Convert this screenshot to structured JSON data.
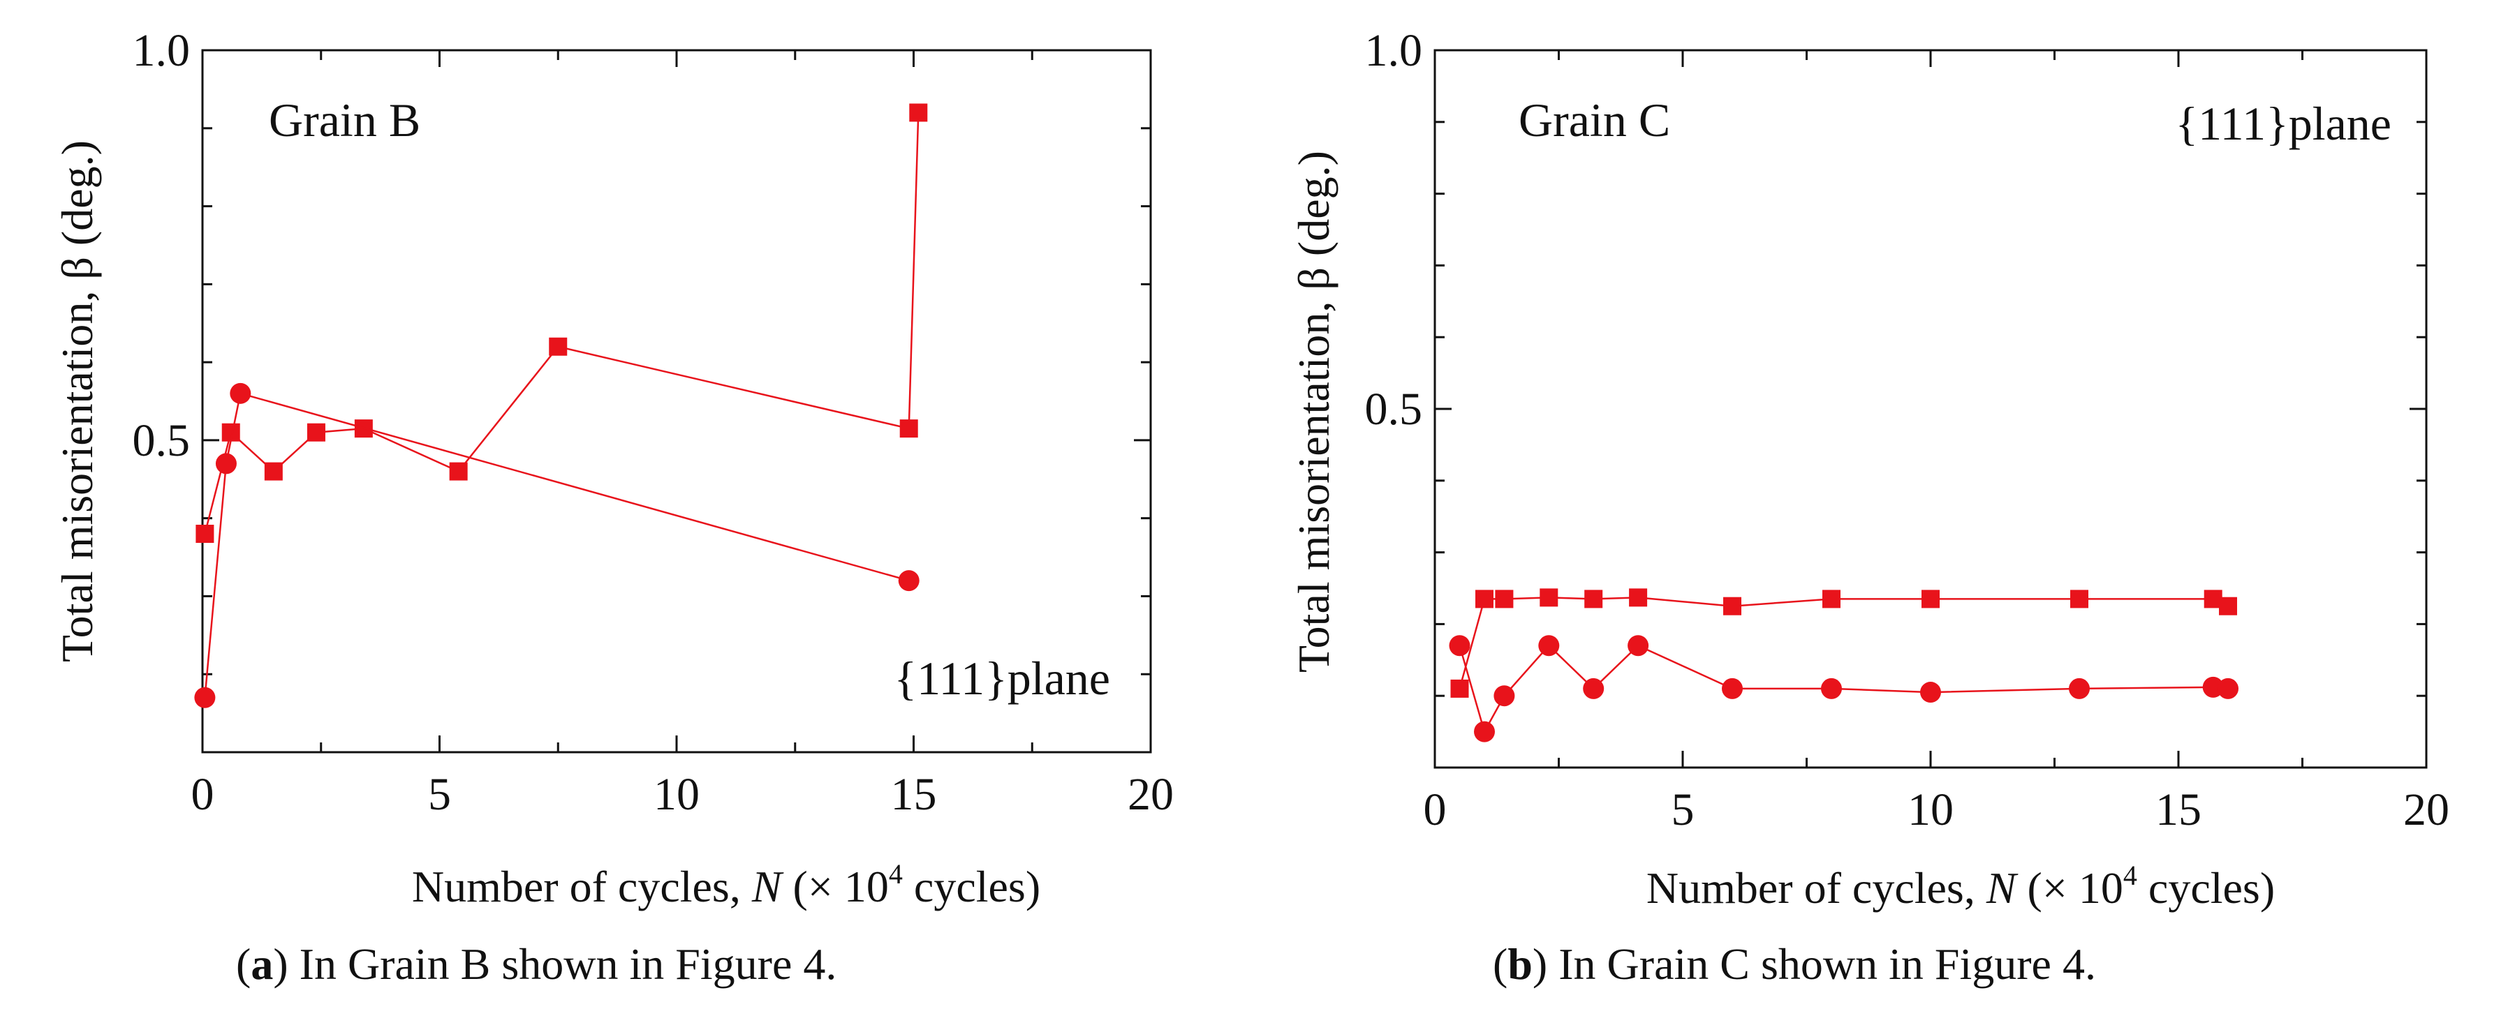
{
  "colors": {
    "series": "#e8131b",
    "axis": "#111111"
  },
  "chart_data": [
    {
      "type": "line",
      "panel": "a",
      "annotation": "Grain B",
      "plane_label": "{111}plane",
      "xlabel_text": "Number of cycles, ",
      "xlabel_var": "N",
      "xlabel_unit_pre": " (× 10",
      "xlabel_exp": "4",
      "xlabel_unit_post": " cycles)",
      "ylabel": "Total misorientation, β (deg.)",
      "xlim": [
        0,
        20
      ],
      "ylim": [
        0.1,
        1.0
      ],
      "xticks": [
        0,
        5,
        10,
        15,
        20
      ],
      "yticks": [
        0.5,
        1.0
      ],
      "xtick_labels": [
        "0",
        "5",
        "10",
        "15",
        "20"
      ],
      "ytick_labels": [
        "0.5",
        "1.0"
      ],
      "series": [
        {
          "name": "square",
          "marker": "square",
          "x": [
            0.05,
            0.6,
            1.5,
            2.4,
            3.4,
            5.4,
            7.5,
            14.9,
            15.1
          ],
          "y": [
            0.38,
            0.51,
            0.46,
            0.51,
            0.515,
            0.46,
            0.62,
            0.515,
            0.92
          ]
        },
        {
          "name": "circle",
          "marker": "circle",
          "x": [
            0.05,
            0.5,
            0.8,
            14.9
          ],
          "y": [
            0.17,
            0.47,
            0.56,
            0.32
          ]
        }
      ],
      "caption_label": "a",
      "caption_text": " In Grain B shown in Figure 4."
    },
    {
      "type": "line",
      "panel": "b",
      "annotation": "Grain C",
      "plane_label": "{111}plane",
      "xlabel_text": "Number of cycles, ",
      "xlabel_var": "N",
      "xlabel_unit_pre": " (× 10",
      "xlabel_exp": "4",
      "xlabel_unit_post": " cycles)",
      "ylabel": "Total misorientation, β (deg.)",
      "xlim": [
        0,
        20
      ],
      "ylim": [
        0.0,
        1.0
      ],
      "xticks": [
        0,
        5,
        10,
        15,
        20
      ],
      "yticks": [
        0.5,
        1.0
      ],
      "xtick_labels": [
        "0",
        "5",
        "10",
        "15",
        "20"
      ],
      "ytick_labels": [
        "0.5",
        "1.0"
      ],
      "series": [
        {
          "name": "square",
          "marker": "square",
          "x": [
            0.5,
            1.0,
            1.4,
            2.3,
            3.2,
            4.1,
            6.0,
            8.0,
            10.0,
            13.0,
            15.7,
            16.0
          ],
          "y": [
            0.11,
            0.235,
            0.235,
            0.237,
            0.235,
            0.237,
            0.225,
            0.235,
            0.235,
            0.235,
            0.235,
            0.225
          ]
        },
        {
          "name": "circle",
          "marker": "circle",
          "x": [
            0.5,
            1.0,
            1.4,
            2.3,
            3.2,
            4.1,
            6.0,
            8.0,
            10.0,
            13.0,
            15.7,
            16.0
          ],
          "y": [
            0.17,
            0.05,
            0.1,
            0.17,
            0.11,
            0.17,
            0.11,
            0.11,
            0.105,
            0.11,
            0.112,
            0.11
          ]
        }
      ],
      "caption_label": "b",
      "caption_text": " In Grain C shown in Figure 4."
    }
  ]
}
